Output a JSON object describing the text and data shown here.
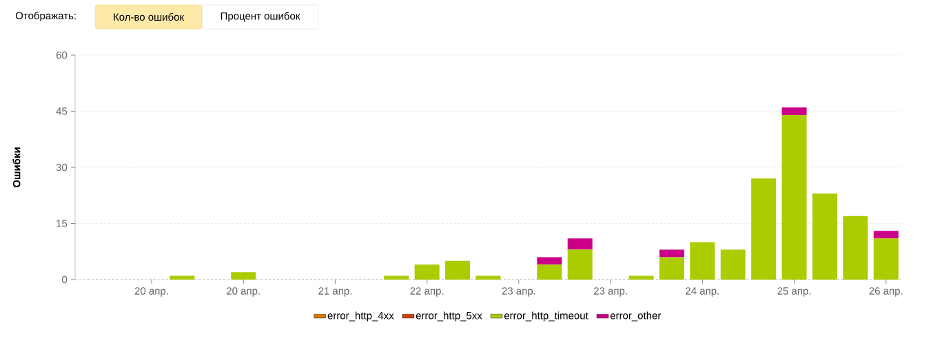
{
  "chart_data": {
    "type": "bar",
    "stacked": true,
    "ylabel": "Ошибки",
    "annotations": [
      "Отображать:",
      "Кол-во ошибок",
      "Процент ошибок"
    ],
    "categories": [
      null,
      null,
      "20 апр.",
      null,
      null,
      "20 апр.",
      null,
      null,
      "21 апр.",
      null,
      null,
      "22 апр.",
      null,
      null,
      "23 апр.",
      null,
      null,
      "23 апр.",
      null,
      null,
      "24 апр.",
      null,
      null,
      "25 апр.",
      null,
      null,
      "26 апр."
    ],
    "series": [
      {
        "name": "error_http_4xx",
        "color": "#d07a00",
        "values": [
          null,
          null,
          null,
          null,
          null,
          null,
          null,
          null,
          null,
          null,
          null,
          null,
          null,
          null,
          null,
          null,
          null,
          null,
          null,
          null,
          null,
          null,
          null,
          null,
          null,
          null,
          null
        ]
      },
      {
        "name": "error_http_5xx",
        "color": "#cc4400",
        "values": [
          null,
          null,
          null,
          null,
          null,
          null,
          null,
          null,
          null,
          null,
          null,
          null,
          null,
          null,
          null,
          null,
          null,
          null,
          null,
          null,
          null,
          null,
          null,
          null,
          null,
          null,
          null
        ]
      },
      {
        "name": "error_http_timeout",
        "color": "#aacc00",
        "values": [
          null,
          null,
          null,
          1,
          null,
          2,
          null,
          null,
          null,
          null,
          1,
          4,
          5,
          1,
          null,
          4,
          8,
          null,
          1,
          6,
          10,
          8,
          27,
          44,
          23,
          17,
          11
        ]
      },
      {
        "name": "error_other",
        "color": "#cc0088",
        "values": [
          null,
          null,
          null,
          null,
          null,
          null,
          null,
          null,
          null,
          null,
          null,
          null,
          null,
          null,
          null,
          2,
          3,
          null,
          null,
          2,
          null,
          null,
          null,
          2,
          null,
          null,
          2
        ]
      }
    ],
    "ylim": [
      0,
      60
    ],
    "yticks": [
      0,
      15,
      30,
      45,
      60
    ],
    "grid": "y",
    "legend": "bottom"
  }
}
